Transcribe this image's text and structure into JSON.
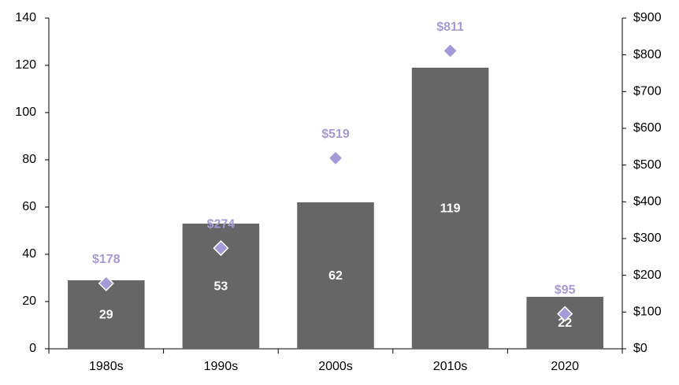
{
  "chart_data": {
    "type": "bar",
    "categories": [
      "1980s",
      "1990s",
      "2000s",
      "2010s",
      "2020"
    ],
    "series": [
      {
        "type": "bar",
        "color": "#666666",
        "values": [
          29,
          53,
          62,
          119,
          22
        ]
      },
      {
        "type": "scatter",
        "marker": "diamond",
        "axis": "y2",
        "color": "#a39bd7",
        "values": [
          178,
          274,
          519,
          811,
          95
        ],
        "value_labels": [
          "$178",
          "$274",
          "$519",
          "$811",
          "$95"
        ]
      }
    ],
    "ylim": [
      0,
      140
    ],
    "yticks": [
      0,
      20,
      40,
      60,
      80,
      100,
      120,
      140
    ],
    "y2lim": [
      0,
      900
    ],
    "y2ticks": [
      {
        "value": 0,
        "label": "$0"
      },
      {
        "value": 100,
        "label": "$100"
      },
      {
        "value": 200,
        "label": "$200"
      },
      {
        "value": 300,
        "label": "$300"
      },
      {
        "value": 400,
        "label": "$400"
      },
      {
        "value": 500,
        "label": "$500"
      },
      {
        "value": 600,
        "label": "$600"
      },
      {
        "value": 700,
        "label": "$700"
      },
      {
        "value": 800,
        "label": "$800"
      },
      {
        "value": 900,
        "label": "$900"
      }
    ],
    "grid": false
  }
}
